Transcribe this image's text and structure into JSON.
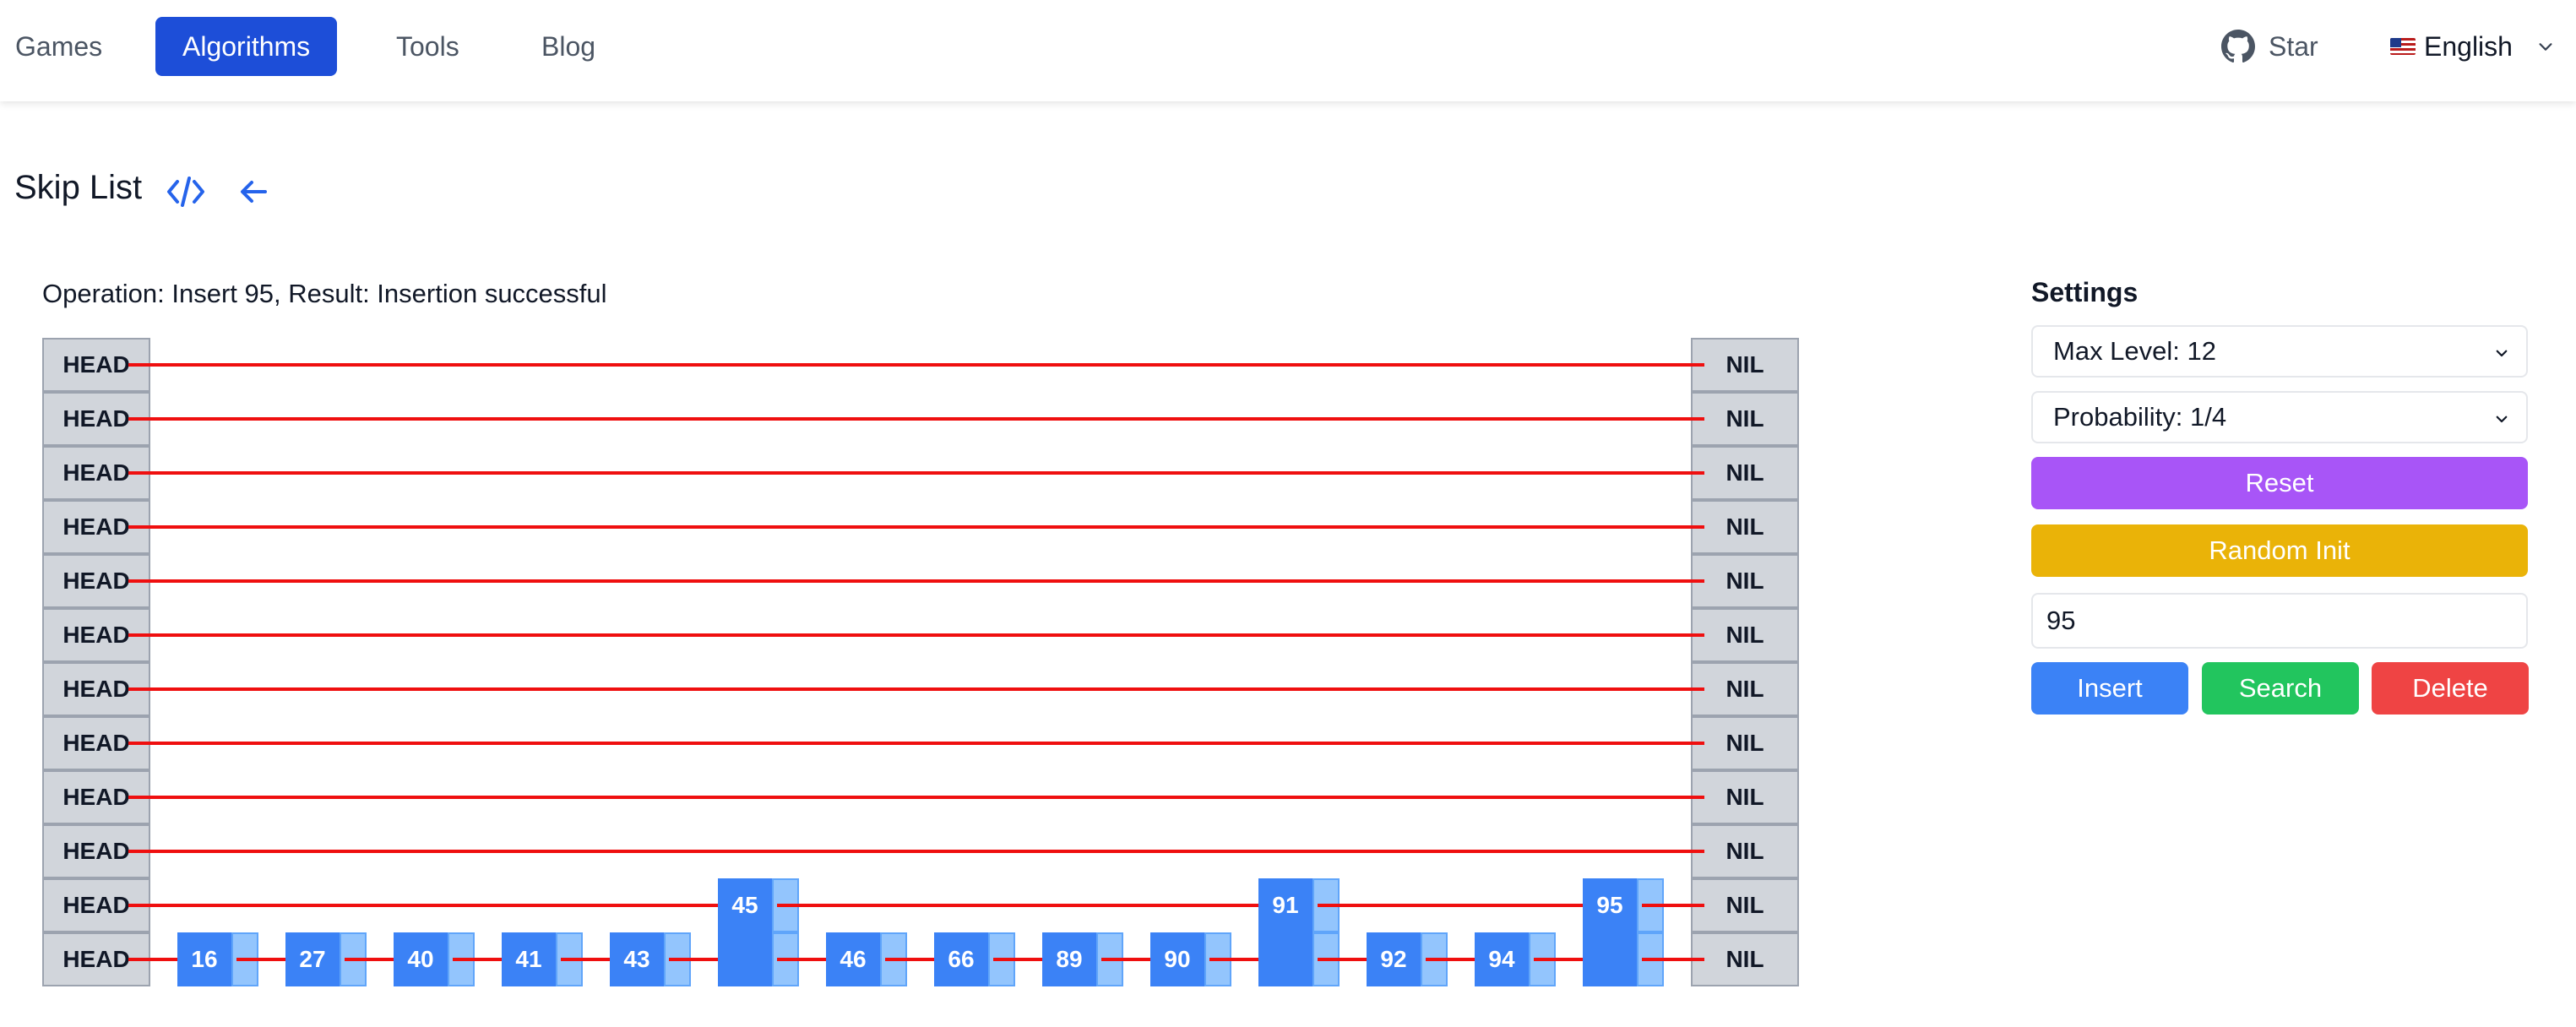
{
  "nav": {
    "items": [
      {
        "label": "Games",
        "active": false
      },
      {
        "label": "Algorithms",
        "active": true
      },
      {
        "label": "Tools",
        "active": false
      },
      {
        "label": "Blog",
        "active": false
      }
    ],
    "star_label": "Star",
    "star_icon": "github-icon",
    "language_label": "English",
    "language_icon": "us-flag-icon",
    "active_color": "#1d4ed8"
  },
  "page": {
    "title": "Skip List",
    "code_icon": "code-icon",
    "back_icon": "arrow-left-icon"
  },
  "status": {
    "operation_text": "Operation: Insert 95, Result: Insertion successful"
  },
  "skiplist": {
    "head_label": "HEAD",
    "nil_label": "NIL",
    "level_count": 12,
    "nodes": [
      {
        "value": "16",
        "height": 1
      },
      {
        "value": "27",
        "height": 1
      },
      {
        "value": "40",
        "height": 1
      },
      {
        "value": "41",
        "height": 1
      },
      {
        "value": "43",
        "height": 1
      },
      {
        "value": "45",
        "height": 2
      },
      {
        "value": "46",
        "height": 1
      },
      {
        "value": "66",
        "height": 1
      },
      {
        "value": "89",
        "height": 1
      },
      {
        "value": "90",
        "height": 1
      },
      {
        "value": "91",
        "height": 2
      },
      {
        "value": "92",
        "height": 1
      },
      {
        "value": "94",
        "height": 1
      },
      {
        "value": "95",
        "height": 2
      }
    ],
    "colors": {
      "node": "#3b82f6",
      "pointer": "#93c5fd",
      "link": "#ef0f0f",
      "sentinel": "#d1d5db"
    }
  },
  "settings": {
    "title": "Settings",
    "max_level": "Max Level: 12",
    "probability": "Probability: 1/4",
    "reset_label": "Reset",
    "random_init_label": "Random Init",
    "value_input": "95",
    "insert_label": "Insert",
    "search_label": "Search",
    "delete_label": "Delete",
    "colors": {
      "reset": "#a855f7",
      "random_init": "#eab308",
      "insert": "#3b82f6",
      "search": "#22c55e",
      "delete": "#ef4444"
    }
  }
}
